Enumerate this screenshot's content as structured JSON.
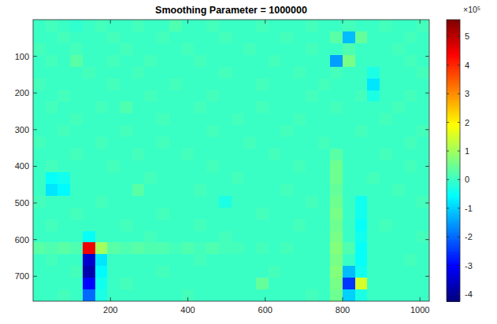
{
  "chart_data": {
    "type": "heatmap",
    "title": "Smoothing Parameter = 1000000",
    "xlim": [
      0,
      1024
    ],
    "xticks": [
      200,
      400,
      600,
      800,
      1000
    ],
    "ylim": [
      0,
      768
    ],
    "yticks": [
      100,
      200,
      300,
      400,
      500,
      600,
      700
    ],
    "colorbar_lim": [
      -4.25,
      5.59
    ],
    "colorbar_ticks": [
      5,
      4,
      3,
      2,
      1,
      0,
      -1,
      -2,
      -3,
      -4
    ],
    "colorbar_exponent": "×10⁵",
    "cells": [
      [
        0,
        0.1,
        0,
        -0.1,
        0,
        0.1,
        0,
        0,
        0.1,
        0,
        0,
        0.2,
        0,
        0,
        0.1,
        0,
        0,
        0,
        0.1,
        0,
        0,
        0,
        0.1,
        0,
        0,
        0.1,
        0,
        0,
        0.1,
        0,
        0,
        0.1
      ],
      [
        0,
        0,
        0.1,
        0,
        0,
        0,
        0.1,
        0,
        0,
        0,
        0.1,
        0,
        0,
        0,
        0,
        0.1,
        0,
        0,
        0,
        0,
        0.1,
        0,
        0,
        0,
        0.3,
        -1.2,
        0.4,
        0,
        0,
        0,
        0.1,
        0
      ],
      [
        0.1,
        0,
        0,
        0.1,
        0,
        0,
        0,
        0.1,
        0,
        0,
        0,
        0,
        0.1,
        0,
        0,
        0,
        0,
        0.1,
        0,
        0,
        0,
        0,
        0.1,
        0,
        0,
        0.2,
        0,
        0,
        0,
        0.1,
        0,
        0
      ],
      [
        0,
        0.1,
        0,
        0.3,
        0,
        0,
        0.1,
        0,
        0,
        0.1,
        0,
        0,
        0,
        0.1,
        0,
        0,
        0,
        0,
        0,
        0.1,
        0,
        0,
        0,
        0,
        -1.5,
        0.6,
        0,
        0,
        0,
        0,
        0.1,
        0
      ],
      [
        0,
        0,
        0,
        0,
        0.1,
        0,
        0,
        0,
        0.1,
        0,
        0,
        0,
        0,
        0,
        0,
        0.1,
        0,
        0,
        0,
        0,
        0,
        0.1,
        0,
        0,
        0.1,
        0,
        0,
        -0.3,
        0,
        0,
        0,
        0.1
      ],
      [
        0.1,
        0,
        0,
        0,
        0,
        0,
        0.1,
        0,
        0,
        0,
        0,
        0.1,
        0,
        0,
        0,
        0,
        0,
        0,
        0.1,
        0,
        0,
        0,
        0,
        0.1,
        0,
        0,
        0,
        -0.8,
        0,
        0,
        0,
        0
      ],
      [
        0,
        0,
        0.1,
        0,
        0,
        0,
        0,
        0,
        0,
        0.1,
        0,
        0,
        0,
        0,
        0.1,
        0,
        0,
        0,
        0,
        0,
        0,
        0,
        0.1,
        0,
        0,
        0,
        0.1,
        -0.3,
        0,
        0,
        0.1,
        0
      ],
      [
        0,
        0.1,
        0,
        0,
        0,
        0.1,
        0,
        0.2,
        0,
        0,
        0,
        0,
        0,
        0.1,
        0,
        0,
        0,
        0,
        0.1,
        0,
        0,
        0,
        0,
        0,
        0.1,
        0,
        0,
        0,
        0,
        0.1,
        0,
        0
      ],
      [
        0,
        0,
        0,
        0.1,
        0,
        0,
        0,
        0,
        0,
        0,
        0.1,
        0,
        0,
        0,
        0,
        0,
        0.1,
        0,
        0,
        0,
        0,
        0.1,
        0,
        0,
        0,
        0,
        0,
        0,
        0.1,
        0,
        0,
        0
      ],
      [
        0,
        0,
        0.1,
        0,
        0,
        0,
        0,
        0.1,
        0,
        0,
        0,
        0,
        0,
        0,
        0.1,
        0,
        0,
        0,
        0,
        0,
        0.1,
        0,
        0,
        0,
        0,
        0,
        0.1,
        0,
        0,
        0,
        0,
        0.1
      ],
      [
        0.1,
        0,
        0,
        0,
        0,
        0.1,
        0,
        0,
        0,
        0,
        0.1,
        0,
        0,
        0,
        0,
        0,
        0,
        0.1,
        0,
        0,
        0,
        0,
        0,
        0.1,
        0,
        0,
        0,
        0,
        0,
        0,
        0.1,
        0
      ],
      [
        0,
        0,
        0,
        0.1,
        0,
        0,
        0,
        0,
        0.1,
        0,
        0,
        0,
        0.1,
        0,
        0,
        0,
        0,
        0,
        0,
        0.1,
        0,
        0,
        0,
        0,
        0.3,
        0,
        0,
        0,
        0.1,
        0,
        0,
        0
      ],
      [
        0,
        0.1,
        0,
        0,
        0,
        0,
        0.1,
        0,
        0,
        0,
        0,
        0,
        0,
        0,
        0.1,
        0,
        0,
        0,
        0,
        0,
        0,
        0.1,
        0,
        0,
        0.5,
        0,
        0,
        0,
        0,
        0,
        0.1,
        0
      ],
      [
        0,
        -0.5,
        -0.4,
        0,
        0,
        0,
        0,
        0,
        0,
        0.1,
        0,
        0,
        0,
        0,
        0,
        0,
        0.1,
        0,
        0,
        0,
        0,
        0,
        0,
        0,
        0.5,
        0,
        0,
        0.1,
        0,
        0,
        0,
        0
      ],
      [
        0,
        -0.8,
        -0.6,
        0,
        0,
        0,
        0,
        0,
        0.3,
        0,
        0,
        0,
        0,
        0.1,
        0,
        0,
        0,
        0,
        0,
        0,
        0.1,
        0,
        0,
        0,
        0.4,
        0,
        0,
        0,
        0,
        0.1,
        0,
        0
      ],
      [
        0.1,
        0,
        0,
        0,
        0,
        0.1,
        0,
        0,
        0,
        0,
        0,
        0,
        0,
        0,
        0,
        -0.3,
        0,
        0,
        0,
        0,
        0,
        0,
        0.1,
        0,
        0.5,
        0,
        -0.4,
        0,
        0,
        0,
        0,
        0.1
      ],
      [
        0,
        0,
        0,
        0.1,
        0,
        0,
        0,
        0,
        0,
        0,
        0.1,
        0,
        0,
        0,
        0,
        0,
        0,
        0,
        0.1,
        0,
        0,
        0,
        0,
        0,
        0.6,
        0,
        -0.4,
        0,
        0,
        0,
        0,
        0
      ],
      [
        0,
        0.1,
        0,
        0,
        0,
        0,
        0,
        0.1,
        0,
        0,
        0,
        0,
        0,
        0.1,
        0,
        0,
        0,
        0,
        0,
        0,
        0,
        0.1,
        0,
        0,
        0.5,
        0,
        -0.5,
        0,
        0.1,
        0,
        0,
        0
      ],
      [
        0,
        0,
        0,
        0,
        -0.5,
        0,
        0,
        0,
        0,
        0.1,
        0,
        0,
        0,
        0,
        0,
        0.1,
        0,
        0,
        0,
        0,
        0,
        0,
        0,
        0,
        0.6,
        0,
        -0.4,
        0,
        0,
        0,
        0,
        0.1
      ],
      [
        0.3,
        0.2,
        0.3,
        0.2,
        4.5,
        1,
        0.3,
        0.2,
        0.3,
        0.2,
        0.2,
        0.1,
        0.2,
        0.1,
        0.2,
        0.1,
        0.1,
        0,
        0.1,
        0,
        0.1,
        0,
        0,
        0,
        0.7,
        0.2,
        -0.5,
        0,
        0,
        0,
        0,
        0
      ],
      [
        0,
        0.1,
        0,
        0,
        -3.5,
        -0.8,
        0,
        0,
        0,
        0,
        0,
        0,
        0,
        0.1,
        0,
        0,
        0,
        0,
        0,
        0,
        0,
        0,
        0,
        0,
        0.6,
        0,
        -0.5,
        0,
        0,
        0,
        0.1,
        0
      ],
      [
        0,
        0,
        0,
        0.1,
        -3.8,
        -0.6,
        0,
        0,
        0,
        0,
        0.1,
        0,
        0,
        0,
        0,
        0,
        0,
        0,
        0,
        0.1,
        0,
        0,
        0,
        0,
        0.7,
        -1.2,
        -0.4,
        0,
        0,
        0,
        0,
        0
      ],
      [
        0,
        0,
        0,
        0,
        -3,
        -0.4,
        0,
        0.1,
        0,
        0,
        0,
        0,
        0,
        0,
        0,
        0,
        0,
        0,
        0.4,
        0,
        0,
        0,
        0,
        0,
        0.6,
        -2.5,
        1.5,
        0,
        0,
        0,
        0,
        0
      ],
      [
        0,
        0,
        0.1,
        0,
        -2,
        -0.3,
        0,
        0,
        0,
        0,
        0,
        0,
        0.1,
        0,
        0,
        0,
        0,
        0,
        0,
        0,
        0,
        0,
        0.1,
        0,
        0.5,
        -1,
        -0.3,
        0,
        0,
        0,
        0,
        0
      ]
    ]
  }
}
